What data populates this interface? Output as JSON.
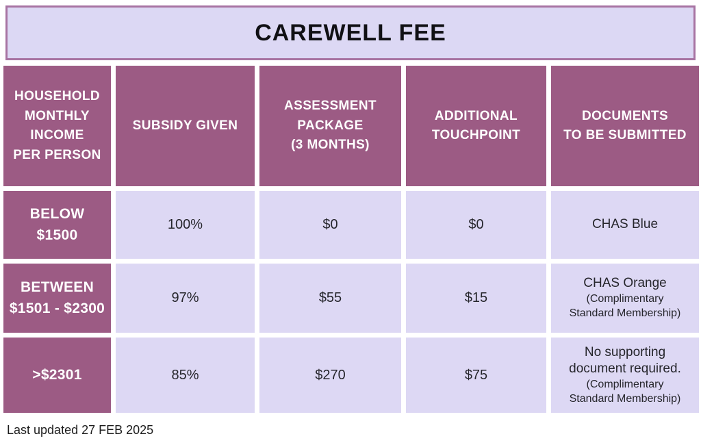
{
  "title": "CAREWELL FEE",
  "table": {
    "headers": [
      {
        "label": "HOUSEHOLD\nMONTHLY\nINCOME\nPER PERSON"
      },
      {
        "label": "SUBSIDY GIVEN"
      },
      {
        "label": "ASSESSMENT\nPACKAGE\n(3 MONTHS)"
      },
      {
        "label": "ADDITIONAL\nTOUCHPOINT"
      },
      {
        "label": "DOCUMENTS\nTO BE SUBMITTED"
      }
    ],
    "rows": [
      {
        "income": "BELOW $1500",
        "subsidy": "100%",
        "assessment_package": "$0",
        "additional_touchpoint": "$0",
        "documents": "CHAS Blue",
        "documents_note": ""
      },
      {
        "income": "BETWEEN\n$1501 - $2300",
        "subsidy": "97%",
        "assessment_package": "$55",
        "additional_touchpoint": "$15",
        "documents": "CHAS Orange",
        "documents_note": "(Complimentary\nStandard Membership)"
      },
      {
        "income": ">$2301",
        "subsidy": "85%",
        "assessment_package": "$270",
        "additional_touchpoint": "$75",
        "documents": "No supporting\ndocument required.",
        "documents_note": "(Complimentary\nStandard Membership)"
      }
    ]
  },
  "footer": {
    "last_updated": "Last updated 27 FEB 2025"
  },
  "colors": {
    "header_bg": "#9C5B84",
    "cell_bg": "#DDD8F4",
    "title_bg": "#DCD8F4",
    "title_border": "#A773A2",
    "title_text": "#101014",
    "header_text": "#FFFFFF",
    "cell_text": "#26262C"
  }
}
